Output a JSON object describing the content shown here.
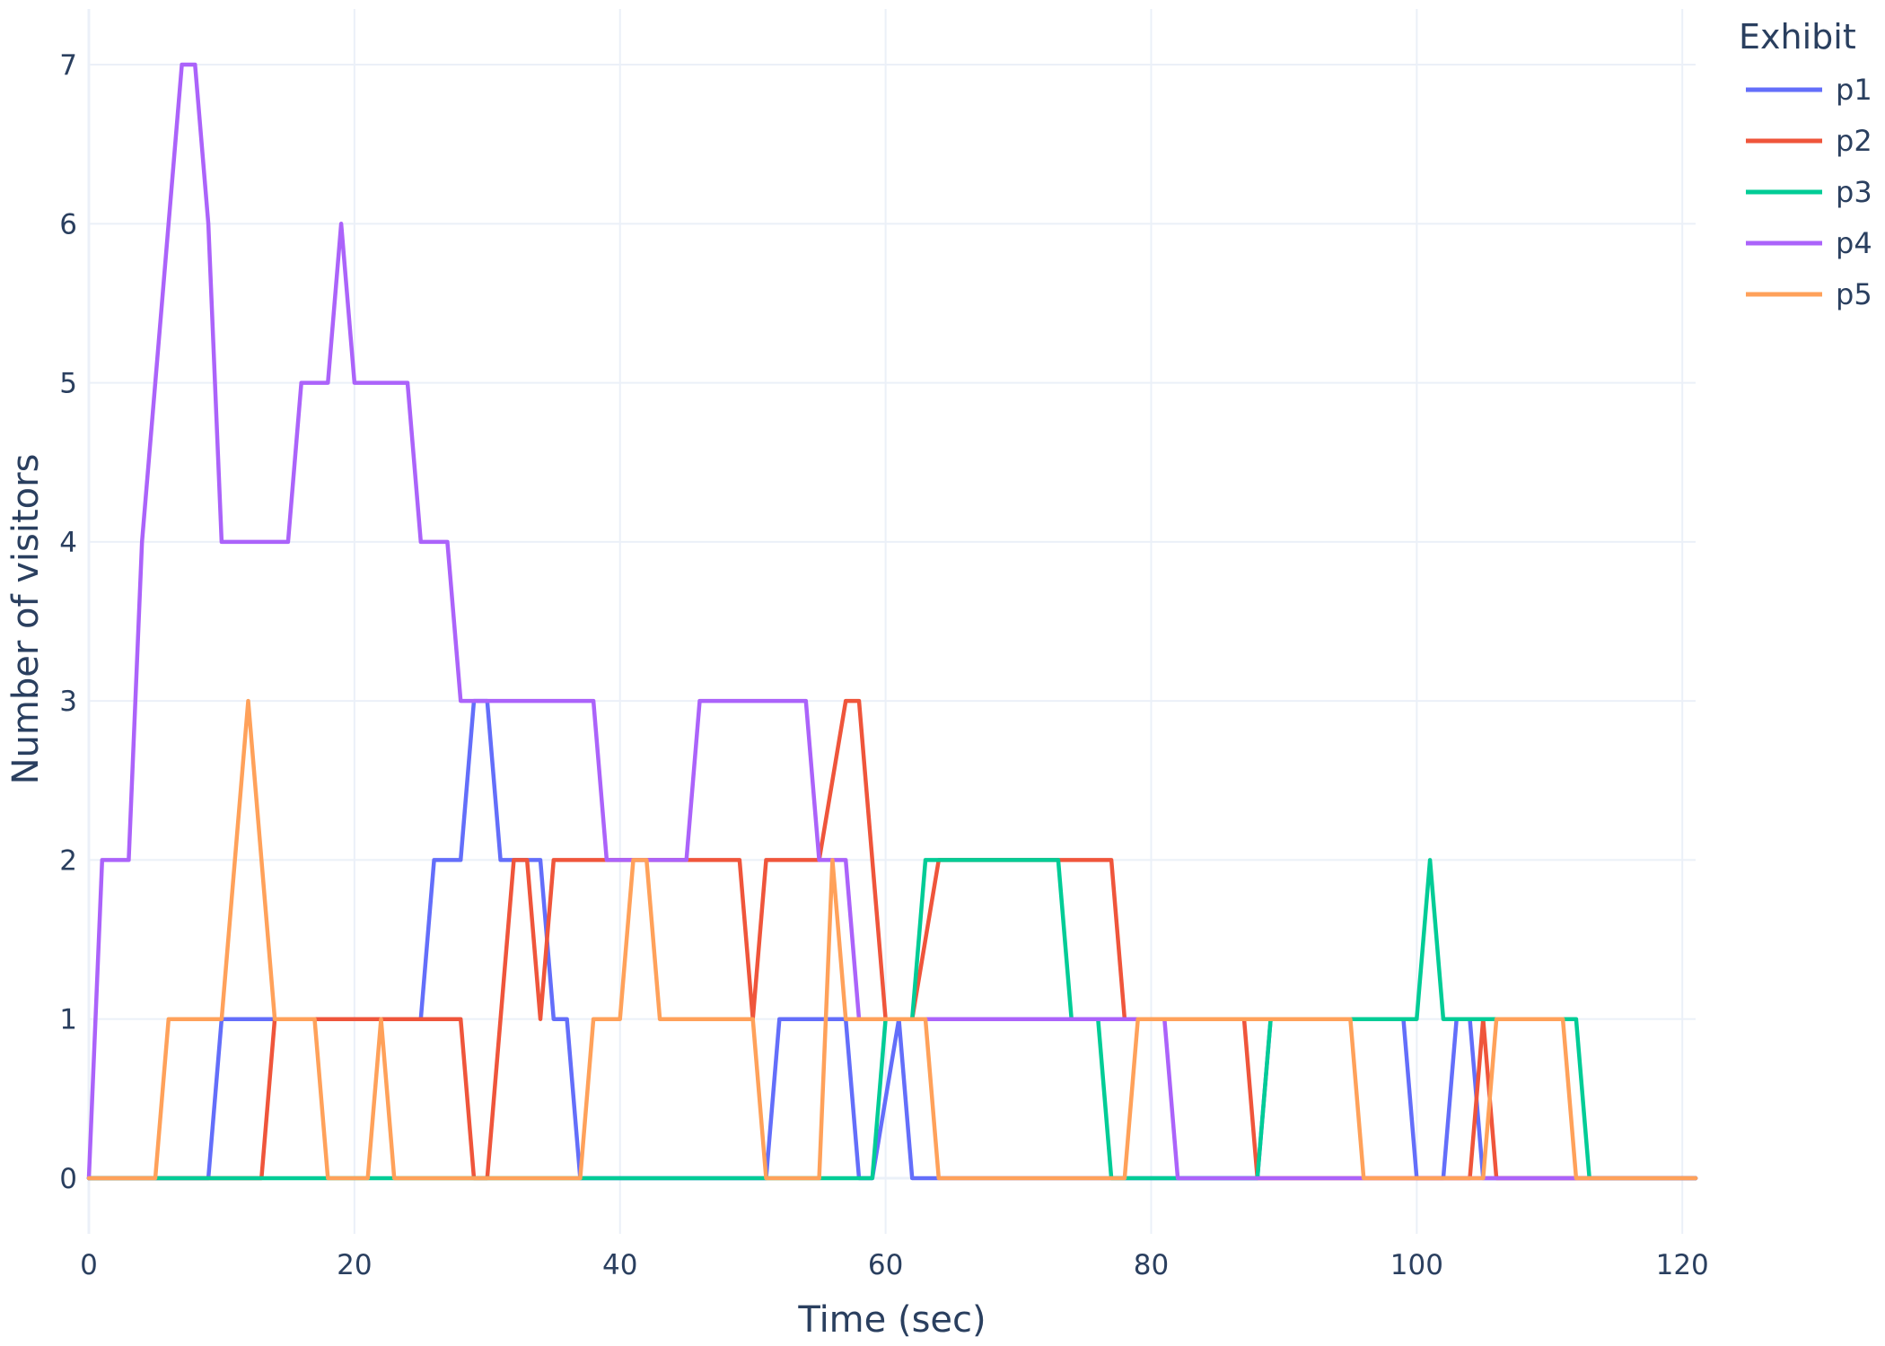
{
  "chart_data": {
    "type": "line",
    "title": "",
    "xlabel": "Time (sec)",
    "ylabel": "Number of visitors",
    "xlim": [
      0,
      121
    ],
    "ylim": [
      -0.35,
      7.35
    ],
    "x_ticks": [
      0,
      20,
      40,
      60,
      80,
      100,
      120
    ],
    "y_ticks": [
      0,
      1,
      2,
      3,
      4,
      5,
      6,
      7
    ],
    "grid": true,
    "legend": {
      "title": "Exhibit",
      "placement": "top-right"
    },
    "series": [
      {
        "name": "p1",
        "color": "#636efa",
        "points": [
          [
            0,
            0
          ],
          [
            9,
            0
          ],
          [
            10,
            1
          ],
          [
            14,
            1
          ],
          [
            25,
            1
          ],
          [
            26,
            2
          ],
          [
            28,
            2
          ],
          [
            29,
            3
          ],
          [
            30,
            3
          ],
          [
            31,
            2
          ],
          [
            34,
            2
          ],
          [
            35,
            1
          ],
          [
            36,
            1
          ],
          [
            37,
            0
          ],
          [
            51,
            0
          ],
          [
            52,
            1
          ],
          [
            57,
            1
          ],
          [
            58,
            0
          ],
          [
            59,
            0
          ],
          [
            61,
            1
          ],
          [
            62,
            0
          ],
          [
            64,
            0
          ],
          [
            88,
            0
          ],
          [
            89,
            1
          ],
          [
            99,
            1
          ],
          [
            100,
            0
          ],
          [
            102,
            0
          ],
          [
            103,
            1
          ],
          [
            104,
            1
          ],
          [
            105,
            0
          ],
          [
            121,
            0
          ]
        ]
      },
      {
        "name": "p2",
        "color": "#ef553b",
        "points": [
          [
            0,
            0
          ],
          [
            13,
            0
          ],
          [
            14,
            1
          ],
          [
            28,
            1
          ],
          [
            29,
            0
          ],
          [
            30,
            0
          ],
          [
            32,
            2
          ],
          [
            33,
            2
          ],
          [
            34,
            1
          ],
          [
            35,
            2
          ],
          [
            49,
            2
          ],
          [
            50,
            1
          ],
          [
            51,
            2
          ],
          [
            55,
            2
          ],
          [
            57,
            3
          ],
          [
            58,
            3
          ],
          [
            60,
            1
          ],
          [
            62,
            1
          ],
          [
            64,
            2
          ],
          [
            77,
            2
          ],
          [
            78,
            1
          ],
          [
            87,
            1
          ],
          [
            88,
            0
          ],
          [
            104,
            0
          ],
          [
            105,
            1
          ],
          [
            106,
            0
          ],
          [
            121,
            0
          ]
        ]
      },
      {
        "name": "p3",
        "color": "#00cc96",
        "points": [
          [
            0,
            0
          ],
          [
            59,
            0
          ],
          [
            60,
            1
          ],
          [
            62,
            1
          ],
          [
            63,
            2
          ],
          [
            73,
            2
          ],
          [
            74,
            1
          ],
          [
            76,
            1
          ],
          [
            77,
            0
          ],
          [
            88,
            0
          ],
          [
            89,
            1
          ],
          [
            100,
            1
          ],
          [
            101,
            2
          ],
          [
            102,
            1
          ],
          [
            112,
            1
          ],
          [
            113,
            0
          ],
          [
            121,
            0
          ]
        ]
      },
      {
        "name": "p4",
        "color": "#ab63fa",
        "points": [
          [
            0,
            0
          ],
          [
            1,
            2
          ],
          [
            3,
            2
          ],
          [
            4,
            4
          ],
          [
            5,
            5
          ],
          [
            6,
            6
          ],
          [
            7,
            7
          ],
          [
            8,
            7
          ],
          [
            9,
            6
          ],
          [
            10,
            4
          ],
          [
            15,
            4
          ],
          [
            16,
            5
          ],
          [
            18,
            5
          ],
          [
            19,
            6
          ],
          [
            20,
            5
          ],
          [
            24,
            5
          ],
          [
            25,
            4
          ],
          [
            27,
            4
          ],
          [
            28,
            3
          ],
          [
            38,
            3
          ],
          [
            39,
            2
          ],
          [
            45,
            2
          ],
          [
            46,
            3
          ],
          [
            54,
            3
          ],
          [
            55,
            2
          ],
          [
            57,
            2
          ],
          [
            58,
            1
          ],
          [
            81,
            1
          ],
          [
            82,
            0
          ],
          [
            121,
            0
          ]
        ]
      },
      {
        "name": "p5",
        "color": "#ffa15a",
        "points": [
          [
            0,
            0
          ],
          [
            5,
            0
          ],
          [
            6,
            1
          ],
          [
            10,
            1
          ],
          [
            12,
            3
          ],
          [
            14,
            1
          ],
          [
            17,
            1
          ],
          [
            18,
            0
          ],
          [
            21,
            0
          ],
          [
            22,
            1
          ],
          [
            23,
            0
          ],
          [
            37,
            0
          ],
          [
            38,
            1
          ],
          [
            40,
            1
          ],
          [
            41,
            2
          ],
          [
            42,
            2
          ],
          [
            43,
            1
          ],
          [
            50,
            1
          ],
          [
            51,
            0
          ],
          [
            55,
            0
          ],
          [
            56,
            2
          ],
          [
            57,
            1
          ],
          [
            63,
            1
          ],
          [
            64,
            0
          ],
          [
            78,
            0
          ],
          [
            79,
            1
          ],
          [
            95,
            1
          ],
          [
            96,
            0
          ],
          [
            105,
            0
          ],
          [
            106,
            1
          ],
          [
            111,
            1
          ],
          [
            112,
            0
          ],
          [
            121,
            0
          ]
        ]
      }
    ]
  }
}
